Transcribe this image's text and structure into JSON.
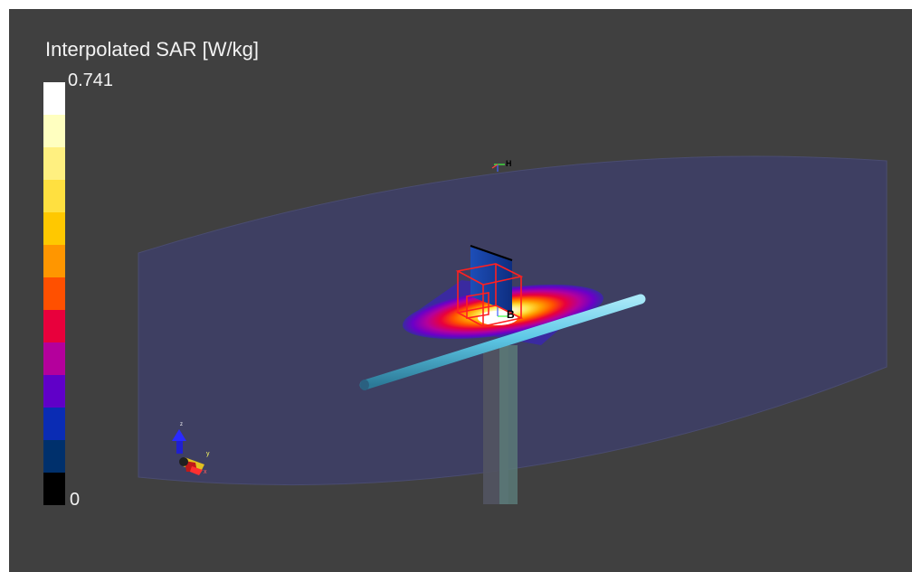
{
  "legend": {
    "title": "Interpolated SAR [W/kg]",
    "max_label": "0.741",
    "min_label": "0",
    "colors": [
      "#ffffff",
      "#ffffc0",
      "#fff080",
      "#ffe040",
      "#ffc800",
      "#ff9600",
      "#ff5000",
      "#e8003c",
      "#b4009c",
      "#6000c8",
      "#0a2cb4",
      "#00306c",
      "#000000"
    ]
  },
  "scene": {
    "background": "#404040",
    "phantom_color": "#3e3f62",
    "dipole_color": "#5ec8e6",
    "box_color": "#ff2020",
    "axis_labels": {
      "x": "x",
      "y": "y",
      "z": "z"
    },
    "marker_labels": {
      "top": "H",
      "source": "B"
    }
  }
}
